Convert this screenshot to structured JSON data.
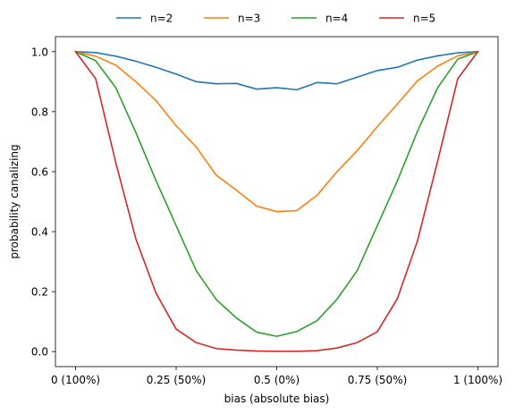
{
  "chart_data": {
    "type": "line",
    "title": "",
    "xlabel": "bias (absolute bias)",
    "ylabel": "probability canalizing",
    "xlim": [
      -0.05,
      1.05
    ],
    "ylim": [
      -0.05,
      1.05
    ],
    "x_ticks": [
      {
        "value": 0,
        "label": "0 (100%)"
      },
      {
        "value": 0.25,
        "label": "0.25 (50%)"
      },
      {
        "value": 0.5,
        "label": "0.5 (0%)"
      },
      {
        "value": 0.75,
        "label": "0.75 (50%)"
      },
      {
        "value": 1,
        "label": "1 (100%)"
      }
    ],
    "y_ticks": [
      {
        "value": 0.0,
        "label": "0.0"
      },
      {
        "value": 0.2,
        "label": "0.2"
      },
      {
        "value": 0.4,
        "label": "0.4"
      },
      {
        "value": 0.6,
        "label": "0.6"
      },
      {
        "value": 0.8,
        "label": "0.8"
      },
      {
        "value": 1.0,
        "label": "1.0"
      }
    ],
    "grid": false,
    "legend_position": "top-center",
    "x": [
      0,
      0.05,
      0.1,
      0.15,
      0.2,
      0.25,
      0.3,
      0.35,
      0.4,
      0.45,
      0.5,
      0.55,
      0.6,
      0.65,
      0.7,
      0.75,
      0.8,
      0.85,
      0.9,
      0.95,
      1.0
    ],
    "series": [
      {
        "name": "n=2",
        "color": "#1f77b4",
        "values": [
          1.0,
          0.997,
          0.985,
          0.968,
          0.948,
          0.925,
          0.9,
          0.893,
          0.894,
          0.875,
          0.88,
          0.873,
          0.897,
          0.893,
          0.915,
          0.937,
          0.948,
          0.972,
          0.986,
          0.996,
          1.0
        ]
      },
      {
        "name": "n=3",
        "color": "#ff7f0e",
        "values": [
          1.0,
          0.985,
          0.955,
          0.9,
          0.837,
          0.753,
          0.682,
          0.588,
          0.538,
          0.485,
          0.467,
          0.47,
          0.521,
          0.6,
          0.67,
          0.75,
          0.826,
          0.903,
          0.952,
          0.986,
          1.0
        ]
      },
      {
        "name": "n=4",
        "color": "#2ca02c",
        "values": [
          1.0,
          0.97,
          0.88,
          0.73,
          0.57,
          0.42,
          0.27,
          0.173,
          0.112,
          0.065,
          0.051,
          0.067,
          0.103,
          0.175,
          0.27,
          0.42,
          0.57,
          0.735,
          0.88,
          0.975,
          1.0
        ]
      },
      {
        "name": "n=5",
        "color": "#d62728",
        "values": [
          1.0,
          0.91,
          0.63,
          0.375,
          0.195,
          0.075,
          0.03,
          0.01,
          0.005,
          0.002,
          0.001,
          0.001,
          0.003,
          0.012,
          0.03,
          0.066,
          0.177,
          0.37,
          0.635,
          0.91,
          1.0
        ]
      }
    ]
  }
}
